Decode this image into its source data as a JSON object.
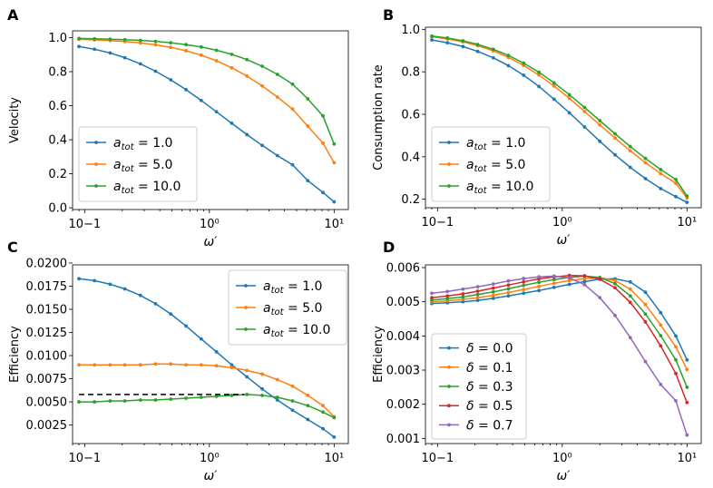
{
  "chart_data": [
    {
      "panel": "A",
      "type": "line",
      "xscale": "log",
      "xlim": [
        0.08,
        13
      ],
      "ylim": [
        -0.01,
        1.04
      ],
      "xticks": [
        {
          "v": 0.1,
          "label": "10−1"
        },
        {
          "v": 1,
          "label": "10⁰"
        },
        {
          "v": 10,
          "label": "10¹"
        }
      ],
      "yticks": [
        {
          "v": 0.0,
          "label": "0.0"
        },
        {
          "v": 0.2,
          "label": "0.2"
        },
        {
          "v": 0.4,
          "label": "0.4"
        },
        {
          "v": 0.6,
          "label": "0.6"
        },
        {
          "v": 0.8,
          "label": "0.8"
        },
        {
          "v": 1.0,
          "label": "1.0"
        }
      ],
      "xlabel": "ω′",
      "ylabel": "Velocity",
      "legend": "bottom-left",
      "x": [
        0.09,
        0.12,
        0.16,
        0.21,
        0.28,
        0.37,
        0.49,
        0.65,
        0.86,
        1.14,
        1.51,
        2.0,
        2.65,
        3.51,
        4.64,
        6.15,
        8.14,
        10.0
      ],
      "series": [
        {
          "name": "a_tot = 1.0",
          "legend_base": "a",
          "legend_sub": "tot",
          "legend_rest": " = 1.0",
          "color": "#1f77b4",
          "values": [
            0.948,
            0.932,
            0.91,
            0.882,
            0.846,
            0.803,
            0.752,
            0.694,
            0.631,
            0.564,
            0.497,
            0.43,
            0.367,
            0.307,
            0.253,
            0.16,
            0.09,
            0.035
          ]
        },
        {
          "name": "a_tot = 5.0",
          "legend_base": "a",
          "legend_sub": "tot",
          "legend_rest": " = 5.0",
          "color": "#ff7f0e",
          "values": [
            0.99,
            0.987,
            0.983,
            0.977,
            0.969,
            0.958,
            0.943,
            0.923,
            0.897,
            0.864,
            0.823,
            0.774,
            0.716,
            0.651,
            0.58,
            0.48,
            0.38,
            0.265
          ]
        },
        {
          "name": "a_tot = 10.0",
          "legend_base": "a",
          "legend_sub": "tot",
          "legend_rest": " = 10.0",
          "color": "#2ca02c",
          "values": [
            0.995,
            0.993,
            0.991,
            0.988,
            0.984,
            0.978,
            0.97,
            0.959,
            0.945,
            0.926,
            0.902,
            0.871,
            0.832,
            0.784,
            0.727,
            0.64,
            0.54,
            0.375
          ]
        }
      ]
    },
    {
      "panel": "B",
      "type": "line",
      "xscale": "log",
      "xlim": [
        0.08,
        13
      ],
      "ylim": [
        0.16,
        1.01
      ],
      "xticks": [
        {
          "v": 0.1,
          "label": "10−1"
        },
        {
          "v": 1,
          "label": "10⁰"
        },
        {
          "v": 10,
          "label": "10¹"
        }
      ],
      "yticks": [
        {
          "v": 0.2,
          "label": "0.2"
        },
        {
          "v": 0.4,
          "label": "0.4"
        },
        {
          "v": 0.6,
          "label": "0.6"
        },
        {
          "v": 0.8,
          "label": "0.8"
        },
        {
          "v": 1.0,
          "label": "1.0"
        }
      ],
      "xlabel": "ω′",
      "ylabel": "Consumption rate",
      "legend": "bottom-left",
      "x": [
        0.09,
        0.12,
        0.16,
        0.21,
        0.28,
        0.37,
        0.49,
        0.65,
        0.86,
        1.14,
        1.51,
        2.0,
        2.65,
        3.51,
        4.64,
        6.15,
        8.14,
        10.0
      ],
      "series": [
        {
          "name": "a_tot = 1.0",
          "legend_base": "a",
          "legend_sub": "tot",
          "legend_rest": " = 1.0",
          "color": "#1f77b4",
          "values": [
            0.95,
            0.937,
            0.919,
            0.896,
            0.866,
            0.829,
            0.784,
            0.731,
            0.671,
            0.607,
            0.54,
            0.473,
            0.409,
            0.35,
            0.297,
            0.25,
            0.212,
            0.185
          ]
        },
        {
          "name": "a_tot = 5.0",
          "legend_base": "a",
          "legend_sub": "tot",
          "legend_rest": " = 5.0",
          "color": "#ff7f0e",
          "values": [
            0.965,
            0.955,
            0.941,
            0.923,
            0.899,
            0.868,
            0.83,
            0.785,
            0.733,
            0.675,
            0.613,
            0.55,
            0.488,
            0.428,
            0.372,
            0.321,
            0.275,
            0.206
          ]
        },
        {
          "name": "a_tot = 10.0",
          "legend_base": "a",
          "legend_sub": "tot",
          "legend_rest": " = 10.0",
          "color": "#2ca02c",
          "values": [
            0.968,
            0.959,
            0.946,
            0.929,
            0.906,
            0.877,
            0.841,
            0.798,
            0.748,
            0.692,
            0.632,
            0.57,
            0.508,
            0.448,
            0.392,
            0.34,
            0.293,
            0.215
          ]
        }
      ]
    },
    {
      "panel": "C",
      "type": "line",
      "xscale": "log",
      "xlim": [
        0.08,
        13
      ],
      "ylim": [
        0.0005,
        0.0198
      ],
      "xticks": [
        {
          "v": 0.1,
          "label": "10−1"
        },
        {
          "v": 1,
          "label": "10⁰"
        },
        {
          "v": 10,
          "label": "10¹"
        }
      ],
      "yticks": [
        {
          "v": 0.0025,
          "label": "0.0025"
        },
        {
          "v": 0.005,
          "label": "0.0050"
        },
        {
          "v": 0.0075,
          "label": "0.0075"
        },
        {
          "v": 0.01,
          "label": "0.0100"
        },
        {
          "v": 0.0125,
          "label": "0.0125"
        },
        {
          "v": 0.015,
          "label": "0.0150"
        },
        {
          "v": 0.0175,
          "label": "0.0175"
        },
        {
          "v": 0.02,
          "label": "0.0200"
        }
      ],
      "xlabel": "ω′",
      "ylabel": "Efficiency",
      "legend": "top-right",
      "x": [
        0.09,
        0.12,
        0.16,
        0.21,
        0.28,
        0.37,
        0.49,
        0.65,
        0.86,
        1.14,
        1.51,
        2.0,
        2.65,
        3.51,
        4.64,
        6.15,
        8.14,
        10.0
      ],
      "series": [
        {
          "name": "a_tot = 1.0",
          "legend_base": "a",
          "legend_sub": "tot",
          "legend_rest": " = 1.0",
          "color": "#1f77b4",
          "values": [
            0.0183,
            0.0181,
            0.0177,
            0.0172,
            0.0165,
            0.0156,
            0.0145,
            0.0132,
            0.0118,
            0.0104,
            0.009,
            0.0077,
            0.0064,
            0.0052,
            0.0041,
            0.0031,
            0.0021,
            0.0012
          ]
        },
        {
          "name": "a_tot = 5.0",
          "legend_base": "a",
          "legend_sub": "tot",
          "legend_rest": " = 5.0",
          "color": "#ff7f0e",
          "values": [
            0.009,
            0.009,
            0.009,
            0.009,
            0.009,
            0.0091,
            0.0091,
            0.009,
            0.009,
            0.0089,
            0.0087,
            0.0084,
            0.008,
            0.0074,
            0.0067,
            0.0057,
            0.0046,
            0.0034
          ]
        },
        {
          "name": "a_tot = 10.0",
          "legend_base": "a",
          "legend_sub": "tot",
          "legend_rest": " = 10.0",
          "color": "#2ca02c",
          "values": [
            0.005,
            0.005,
            0.0051,
            0.0051,
            0.0052,
            0.0052,
            0.0053,
            0.0054,
            0.0055,
            0.0056,
            0.0057,
            0.0058,
            0.0057,
            0.0055,
            0.0051,
            0.0046,
            0.0039,
            0.0033
          ]
        }
      ],
      "reference_line": {
        "style": "dashed",
        "color": "#000000",
        "y": 0.0058,
        "x_from": 0.09,
        "x_to": 1.9
      }
    },
    {
      "panel": "D",
      "type": "line",
      "xscale": "log",
      "xlim": [
        0.08,
        13
      ],
      "ylim": [
        0.00085,
        0.00608
      ],
      "xticks": [
        {
          "v": 0.1,
          "label": "10−1"
        },
        {
          "v": 1,
          "label": "10⁰"
        },
        {
          "v": 10,
          "label": "10¹"
        }
      ],
      "yticks": [
        {
          "v": 0.001,
          "label": "0.001"
        },
        {
          "v": 0.002,
          "label": "0.002"
        },
        {
          "v": 0.003,
          "label": "0.003"
        },
        {
          "v": 0.004,
          "label": "0.004"
        },
        {
          "v": 0.005,
          "label": "0.005"
        },
        {
          "v": 0.006,
          "label": "0.006"
        }
      ],
      "xlabel": "ω′",
      "ylabel": "Efficiency",
      "legend": "bottom-left",
      "x": [
        0.09,
        0.12,
        0.16,
        0.21,
        0.28,
        0.37,
        0.49,
        0.65,
        0.86,
        1.14,
        1.51,
        2.0,
        2.65,
        3.51,
        4.64,
        6.15,
        8.14,
        10.0
      ],
      "series": [
        {
          "name": "δ = 0.0",
          "legend_base": "δ",
          "legend_sub": "",
          "legend_rest": " = 0.0",
          "color": "#1f77b4",
          "values": [
            0.00495,
            0.00497,
            0.005,
            0.00504,
            0.0051,
            0.00517,
            0.00525,
            0.00533,
            0.00542,
            0.00551,
            0.00559,
            0.00566,
            0.00567,
            0.00558,
            0.00528,
            0.00468,
            0.004,
            0.0033
          ]
        },
        {
          "name": "δ = 0.1",
          "legend_base": "δ",
          "legend_sub": "",
          "legend_rest": " = 0.1",
          "color": "#ff7f0e",
          "values": [
            0.005,
            0.00503,
            0.00507,
            0.00512,
            0.00519,
            0.00527,
            0.00536,
            0.00545,
            0.00554,
            0.00562,
            0.00568,
            0.0057,
            0.00562,
            0.00537,
            0.00492,
            0.00432,
            0.00368,
            0.00302
          ]
        },
        {
          "name": "δ = 0.3",
          "legend_base": "δ",
          "legend_sub": "",
          "legend_rest": " = 0.3",
          "color": "#2ca02c",
          "values": [
            0.00505,
            0.00509,
            0.00514,
            0.00521,
            0.00529,
            0.00538,
            0.00548,
            0.00557,
            0.00565,
            0.00571,
            0.00575,
            0.00571,
            0.00553,
            0.00517,
            0.00464,
            0.00401,
            0.0033,
            0.0025
          ]
        },
        {
          "name": "δ = 0.5",
          "legend_base": "δ",
          "legend_sub": "",
          "legend_rest": " = 0.5",
          "color": "#d62728",
          "values": [
            0.00512,
            0.00517,
            0.00523,
            0.00531,
            0.0054,
            0.00549,
            0.00558,
            0.00567,
            0.00573,
            0.00577,
            0.00576,
            0.00566,
            0.00541,
            0.00498,
            0.00441,
            0.00371,
            0.0029,
            0.00205
          ]
        },
        {
          "name": "δ = 0.7",
          "legend_base": "δ",
          "legend_sub": "",
          "legend_rest": " = 0.7",
          "color": "#9467bd",
          "values": [
            0.00525,
            0.0053,
            0.00537,
            0.00544,
            0.00552,
            0.00561,
            0.00568,
            0.00573,
            0.00575,
            0.0057,
            0.0055,
            0.00512,
            0.0046,
            0.00395,
            0.00325,
            0.00258,
            0.0021,
            0.0011
          ]
        }
      ]
    }
  ]
}
